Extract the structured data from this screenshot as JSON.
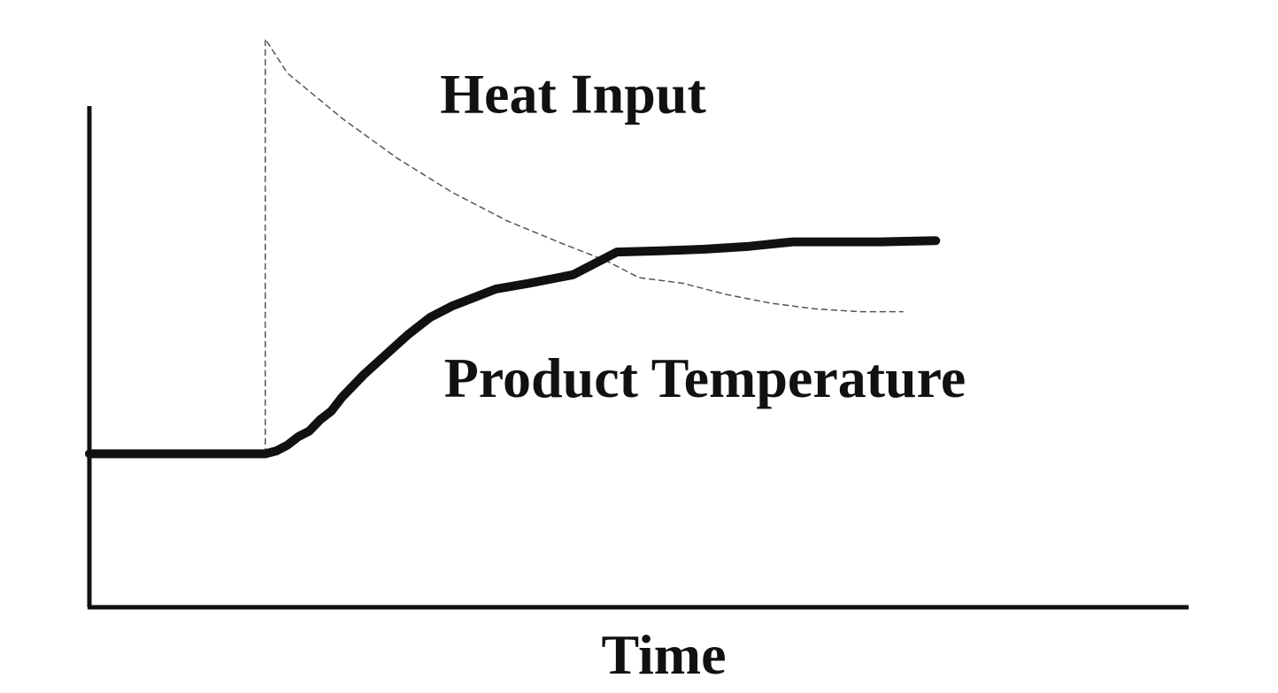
{
  "chart_data": {
    "type": "line",
    "title": "",
    "xlabel": "Time",
    "ylabel": "",
    "xlim": [
      0,
      100
    ],
    "ylim": [
      0,
      100
    ],
    "grid": false,
    "legend": "none",
    "series": [
      {
        "name": "Heat Input",
        "style": "dashed",
        "x": [
          16,
          16,
          18,
          23,
          28,
          33,
          38,
          43,
          47,
          50,
          54,
          58,
          62,
          66,
          70,
          74
        ],
        "y": [
          27,
          100,
          94,
          86,
          79,
          73,
          68,
          64,
          61,
          58,
          57,
          55,
          53.5,
          52.5,
          52,
          52
        ]
      },
      {
        "name": "Product Temperature",
        "style": "solid",
        "x": [
          0,
          2,
          6,
          10,
          15,
          16,
          17,
          18,
          19,
          20,
          21,
          22,
          23,
          25,
          27,
          29,
          31,
          33,
          35,
          37,
          40,
          44,
          48,
          52,
          56,
          60,
          64,
          68,
          72,
          77
        ],
        "y": [
          27,
          27,
          27,
          27,
          27,
          27,
          27.5,
          28.5,
          30,
          31,
          33,
          34.5,
          37,
          41,
          44.5,
          48,
          51,
          53,
          54.5,
          56,
          57,
          58.5,
          62.5,
          62.7,
          63,
          63.5,
          64.3,
          64.3,
          64.3,
          64.5
        ]
      }
    ],
    "annotations": [
      {
        "text": "Heat Input",
        "x": 44,
        "y": 87
      },
      {
        "text": "Product Temperature",
        "x": 56,
        "y": 37
      }
    ]
  }
}
